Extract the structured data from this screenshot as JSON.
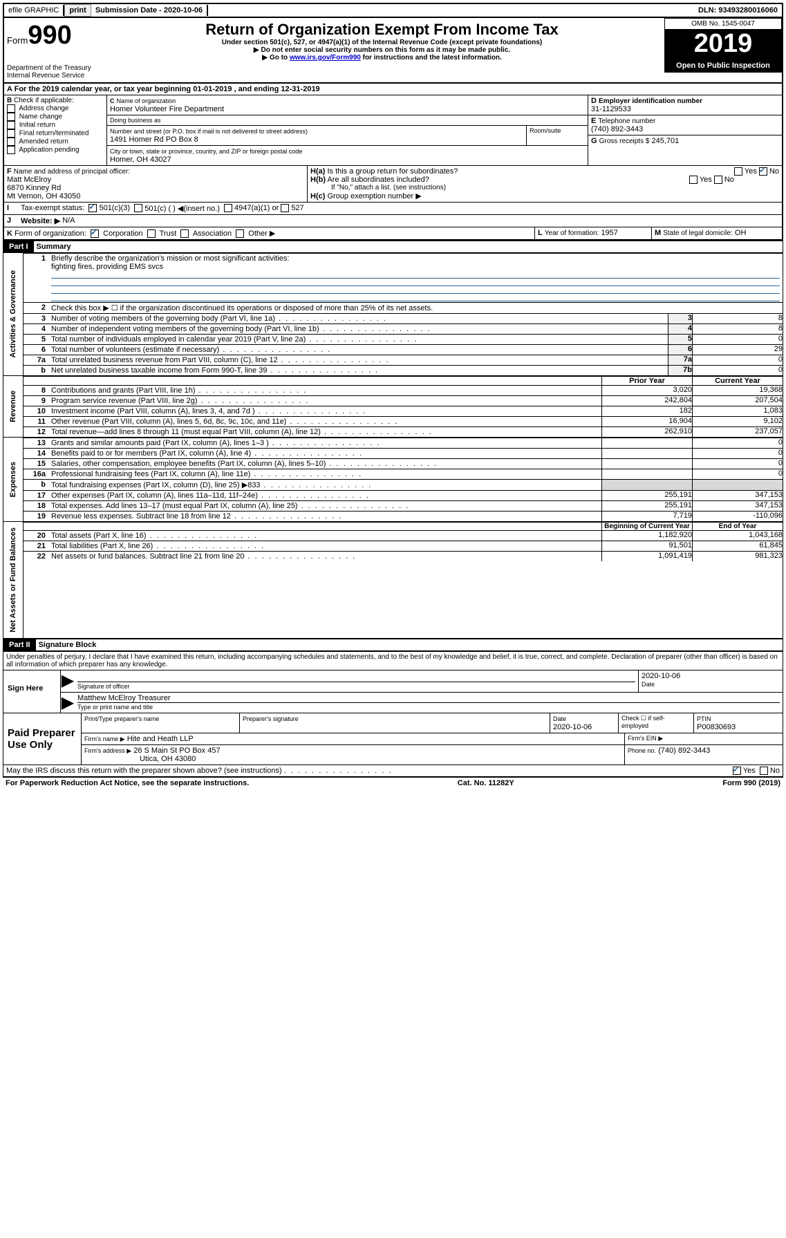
{
  "topbar": {
    "efile": "efile GRAPHIC",
    "print": "print",
    "sub_label": "Submission Date - ",
    "sub_date": "2020-10-06",
    "dln_label": "DLN: ",
    "dln": "93493280016060"
  },
  "header": {
    "form_prefix": "Form",
    "form_number": "990",
    "dept": "Department of the Treasury\nInternal Revenue Service",
    "title": "Return of Organization Exempt From Income Tax",
    "subtitle": "Under section 501(c), 527, or 4947(a)(1) of the Internal Revenue Code (except private foundations)",
    "warn1": "Do not enter social security numbers on this form as it may be made public.",
    "warn2_pre": "Go to ",
    "warn2_link": "www.irs.gov/Form990",
    "warn2_post": " for instructions and the latest information.",
    "omb": "OMB No. 1545-0047",
    "year": "2019",
    "open": "Open to Public Inspection"
  },
  "period": {
    "a": "A",
    "text1": "For the 2019 calendar year, or tax year beginning ",
    "begin": "01-01-2019",
    "text2": " , and ending ",
    "end": "12-31-2019"
  },
  "boxB": {
    "label": "B",
    "sub": "Check if applicable:",
    "items": [
      "Address change",
      "Name change",
      "Initial return",
      "Final return/terminated",
      "Amended return",
      "Application pending"
    ]
  },
  "boxC": {
    "label": "C",
    "name_label": "Name of organization",
    "name": "Homer Volunteer Fire Department",
    "dba_label": "Doing business as",
    "addr_label": "Number and street (or P.O. box if mail is not delivered to street address)",
    "room_label": "Room/suite",
    "addr": "1491 Homer Rd PO Box 8",
    "city_label": "City or town, state or province, country, and ZIP or foreign postal code",
    "city": "Homer, OH  43027"
  },
  "boxD": {
    "label": "D",
    "sub": "Employer identification number",
    "val": "31-1129533"
  },
  "boxE": {
    "label": "E",
    "sub": "Telephone number",
    "val": "(740) 892-3443"
  },
  "boxG": {
    "label": "G",
    "sub": "Gross receipts $",
    "val": "245,701"
  },
  "boxF": {
    "label": "F",
    "sub": "Name and address of principal officer:",
    "name": "Matt McElroy",
    "addr1": "6870 Kinney Rd",
    "addr2": "Mt Vernon, OH  43050"
  },
  "boxH": {
    "a_label": "H(a)",
    "a_text": "Is this a group return for subordinates?",
    "a_yes": "Yes",
    "a_no": "No",
    "b_label": "H(b)",
    "b_text": "Are all subordinates included?",
    "b_note": "If \"No,\" attach a list. (see instructions)",
    "c_label": "H(c)",
    "c_text": "Group exemption number ▶"
  },
  "boxI": {
    "label": "I",
    "sub": "Tax-exempt status:",
    "o1": "501(c)(3)",
    "o2": "501(c) (  ) ◀(insert no.)",
    "o3": "4947(a)(1) or",
    "o4": "527"
  },
  "boxJ": {
    "label": "J",
    "sub": "Website: ▶",
    "val": "N/A"
  },
  "boxK": {
    "label": "K",
    "sub": "Form of organization:",
    "o1": "Corporation",
    "o2": "Trust",
    "o3": "Association",
    "o4": "Other ▶"
  },
  "boxL": {
    "label": "L",
    "sub": "Year of formation:",
    "val": "1957"
  },
  "boxM": {
    "label": "M",
    "sub": "State of legal domicile:",
    "val": "OH"
  },
  "part1": {
    "bar": "Part I",
    "title": "Summary"
  },
  "summary": {
    "q1": "Briefly describe the organization's mission or most significant activities:",
    "q1val": "fighting fires, providing EMS svcs",
    "q2": "Check this box ▶ ☐ if the organization discontinued its operations or disposed of more than 25% of its net assets.",
    "lines_gov": [
      {
        "n": "3",
        "t": "Number of voting members of the governing body (Part VI, line 1a)",
        "box": "3",
        "val": "8"
      },
      {
        "n": "4",
        "t": "Number of independent voting members of the governing body (Part VI, line 1b)",
        "box": "4",
        "val": "8"
      },
      {
        "n": "5",
        "t": "Total number of individuals employed in calendar year 2019 (Part V, line 2a)",
        "box": "5",
        "val": "0"
      },
      {
        "n": "6",
        "t": "Total number of volunteers (estimate if necessary)",
        "box": "6",
        "val": "29"
      },
      {
        "n": "7a",
        "t": "Total unrelated business revenue from Part VIII, column (C), line 12",
        "box": "7a",
        "val": "0"
      },
      {
        "n": "b",
        "t": "Net unrelated business taxable income from Form 990-T, line 39",
        "box": "7b",
        "val": "0"
      }
    ],
    "hdr_prior": "Prior Year",
    "hdr_curr": "Current Year",
    "revenue": [
      {
        "n": "8",
        "t": "Contributions and grants (Part VIII, line 1h)",
        "p": "3,020",
        "c": "19,368"
      },
      {
        "n": "9",
        "t": "Program service revenue (Part VIII, line 2g)",
        "p": "242,804",
        "c": "207,504"
      },
      {
        "n": "10",
        "t": "Investment income (Part VIII, column (A), lines 3, 4, and 7d )",
        "p": "182",
        "c": "1,083"
      },
      {
        "n": "11",
        "t": "Other revenue (Part VIII, column (A), lines 5, 6d, 8c, 9c, 10c, and 11e)",
        "p": "16,904",
        "c": "9,102"
      },
      {
        "n": "12",
        "t": "Total revenue—add lines 8 through 11 (must equal Part VIII, column (A), line 12)",
        "p": "262,910",
        "c": "237,057"
      }
    ],
    "expenses": [
      {
        "n": "13",
        "t": "Grants and similar amounts paid (Part IX, column (A), lines 1–3 )",
        "p": "",
        "c": "0"
      },
      {
        "n": "14",
        "t": "Benefits paid to or for members (Part IX, column (A), line 4)",
        "p": "",
        "c": "0"
      },
      {
        "n": "15",
        "t": "Salaries, other compensation, employee benefits (Part IX, column (A), lines 5–10)",
        "p": "",
        "c": "0"
      },
      {
        "n": "16a",
        "t": "Professional fundraising fees (Part IX, column (A), line 11e)",
        "p": "",
        "c": "0"
      },
      {
        "n": "b",
        "t": "Total fundraising expenses (Part IX, column (D), line 25) ▶833",
        "p": "—shade—",
        "c": "—shade—"
      },
      {
        "n": "17",
        "t": "Other expenses (Part IX, column (A), lines 11a–11d, 11f–24e)",
        "p": "255,191",
        "c": "347,153"
      },
      {
        "n": "18",
        "t": "Total expenses. Add lines 13–17 (must equal Part IX, column (A), line 25)",
        "p": "255,191",
        "c": "347,153"
      },
      {
        "n": "19",
        "t": "Revenue less expenses. Subtract line 18 from line 12",
        "p": "7,719",
        "c": "-110,096"
      }
    ],
    "hdr_begin": "Beginning of Current Year",
    "hdr_end": "End of Year",
    "net": [
      {
        "n": "20",
        "t": "Total assets (Part X, line 16)",
        "p": "1,182,920",
        "c": "1,043,168"
      },
      {
        "n": "21",
        "t": "Total liabilities (Part X, line 26)",
        "p": "91,501",
        "c": "61,845"
      },
      {
        "n": "22",
        "t": "Net assets or fund balances. Subtract line 21 from line 20",
        "p": "1,091,419",
        "c": "981,323"
      }
    ],
    "side_gov": "Activities & Governance",
    "side_rev": "Revenue",
    "side_exp": "Expenses",
    "side_net": "Net Assets or Fund Balances"
  },
  "part2": {
    "bar": "Part II",
    "title": "Signature Block"
  },
  "sig": {
    "jurat": "Under penalties of perjury, I declare that I have examined this return, including accompanying schedules and statements, and to the best of my knowledge and belief, it is true, correct, and complete. Declaration of preparer (other than officer) is based on all information of which preparer has any knowledge.",
    "sign_here": "Sign Here",
    "sig_officer": "Signature of officer",
    "date_label": "Date",
    "date_val": "2020-10-06",
    "name_title": "Matthew McElroy Treasurer",
    "name_title_label": "Type or print name and title",
    "paid": "Paid Preparer Use Only",
    "prep_name_label": "Print/Type preparer's name",
    "prep_sig_label": "Preparer's signature",
    "prep_date_label": "Date",
    "prep_date": "2020-10-06",
    "check_label": "Check ☐ if self-employed",
    "ptin_label": "PTIN",
    "ptin": "P00830693",
    "firm_name_label": "Firm's name   ▶",
    "firm_name": "Hite and Heath LLP",
    "firm_ein_label": "Firm's EIN ▶",
    "firm_addr_label": "Firm's address ▶",
    "firm_addr1": "26 S Main St PO Box 457",
    "firm_addr2": "Utica, OH  43080",
    "phone_label": "Phone no.",
    "phone": "(740) 892-3443",
    "discuss": "May the IRS discuss this return with the preparer shown above? (see instructions)",
    "yes": "Yes",
    "no": "No"
  },
  "footer": {
    "left": "For Paperwork Reduction Act Notice, see the separate instructions.",
    "mid": "Cat. No. 11282Y",
    "right": "Form 990 (2019)"
  }
}
